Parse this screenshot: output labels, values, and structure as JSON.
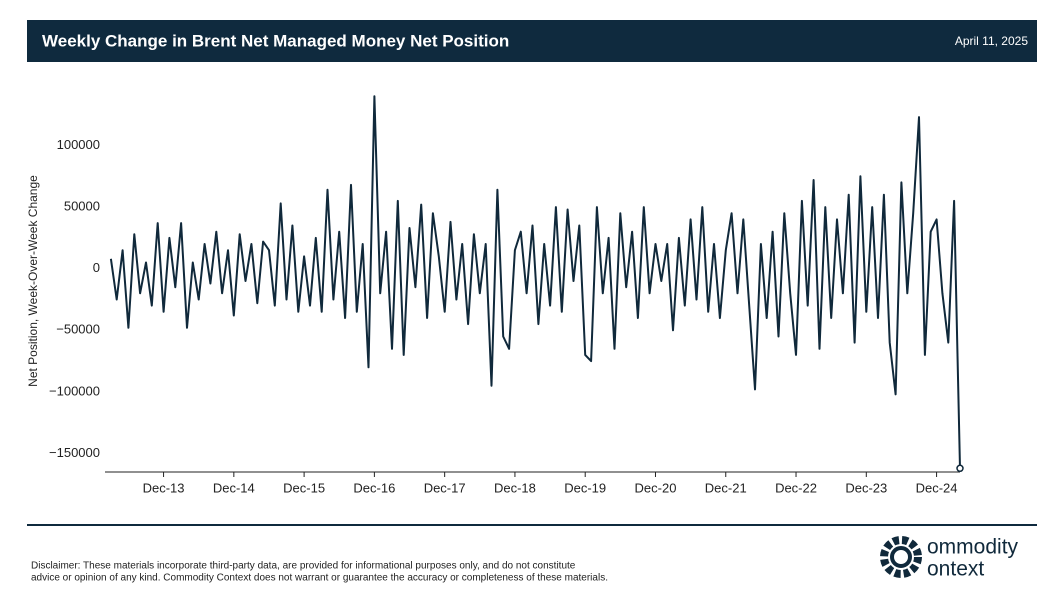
{
  "header": {
    "title": "Weekly Change in Brent Net Managed Money Net Position",
    "date": "April 11, 2025"
  },
  "chart_data": {
    "type": "line",
    "ylabel": "Net Position, Week-Over-Week Change",
    "x": [
      "2013-03",
      "2013-04",
      "2013-05",
      "2013-06",
      "2013-07",
      "2013-08",
      "2013-09",
      "2013-10",
      "2013-11",
      "2013-12",
      "2014-01",
      "2014-02",
      "2014-03",
      "2014-04",
      "2014-05",
      "2014-06",
      "2014-07",
      "2014-08",
      "2014-09",
      "2014-10",
      "2014-11",
      "2014-12",
      "2015-01",
      "2015-02",
      "2015-03",
      "2015-04",
      "2015-05",
      "2015-06",
      "2015-07",
      "2015-08",
      "2015-09",
      "2015-10",
      "2015-11",
      "2015-12",
      "2016-01",
      "2016-02",
      "2016-03",
      "2016-04",
      "2016-05",
      "2016-06",
      "2016-07",
      "2016-08",
      "2016-09",
      "2016-10",
      "2016-11",
      "2016-12",
      "2017-01",
      "2017-02",
      "2017-03",
      "2017-04",
      "2017-05",
      "2017-06",
      "2017-07",
      "2017-08",
      "2017-09",
      "2017-10",
      "2017-11",
      "2017-12",
      "2018-01",
      "2018-02",
      "2018-03",
      "2018-04",
      "2018-05",
      "2018-06",
      "2018-07",
      "2018-08",
      "2018-09",
      "2018-10",
      "2018-11",
      "2018-12",
      "2019-01",
      "2019-02",
      "2019-03",
      "2019-04",
      "2019-05",
      "2019-06",
      "2019-07",
      "2019-08",
      "2019-09",
      "2019-10",
      "2019-11",
      "2019-12",
      "2020-01",
      "2020-02",
      "2020-03",
      "2020-04",
      "2020-05",
      "2020-06",
      "2020-07",
      "2020-08",
      "2020-09",
      "2020-10",
      "2020-11",
      "2020-12",
      "2021-01",
      "2021-02",
      "2021-03",
      "2021-04",
      "2021-05",
      "2021-06",
      "2021-07",
      "2021-08",
      "2021-09",
      "2021-10",
      "2021-11",
      "2021-12",
      "2022-01",
      "2022-02",
      "2022-03",
      "2022-04",
      "2022-05",
      "2022-06",
      "2022-07",
      "2022-08",
      "2022-09",
      "2022-10",
      "2022-11",
      "2022-12",
      "2023-01",
      "2023-02",
      "2023-03",
      "2023-04",
      "2023-05",
      "2023-06",
      "2023-07",
      "2023-08",
      "2023-09",
      "2023-10",
      "2023-11",
      "2023-12",
      "2024-01",
      "2024-02",
      "2024-03",
      "2024-04",
      "2024-05",
      "2024-06",
      "2024-07",
      "2024-08",
      "2024-09",
      "2024-10",
      "2024-11",
      "2024-12",
      "2025-01",
      "2025-02",
      "2025-03",
      "2025-04"
    ],
    "series": [
      {
        "color": "#10293b",
        "values": [
          8000,
          -25000,
          15000,
          -48000,
          28000,
          -20000,
          5000,
          -30000,
          37000,
          -35000,
          25000,
          -15000,
          37000,
          -48000,
          5000,
          -25000,
          20000,
          -12000,
          30000,
          -20000,
          15000,
          -38000,
          28000,
          -10000,
          20000,
          -28000,
          22000,
          15000,
          -30000,
          53000,
          -25000,
          35000,
          -35000,
          10000,
          -30000,
          25000,
          -35000,
          64000,
          -25000,
          30000,
          -40000,
          68000,
          -35000,
          20000,
          -80000,
          140000,
          -20000,
          30000,
          -65000,
          55000,
          -70000,
          33000,
          -15000,
          52000,
          -40000,
          45000,
          10000,
          -35000,
          38000,
          -25000,
          20000,
          -45000,
          28000,
          -20000,
          20000,
          -95000,
          64000,
          -55000,
          -65000,
          15000,
          30000,
          -20000,
          35000,
          -45000,
          20000,
          -30000,
          50000,
          -35000,
          48000,
          -10000,
          35000,
          -70000,
          -75000,
          50000,
          -20000,
          25000,
          -65000,
          45000,
          -15000,
          30000,
          -40000,
          50000,
          -20000,
          20000,
          -10000,
          20000,
          -50000,
          25000,
          -30000,
          40000,
          -25000,
          50000,
          -35000,
          20000,
          -40000,
          15000,
          45000,
          -20000,
          40000,
          -30000,
          -98000,
          20000,
          -40000,
          30000,
          -55000,
          45000,
          -20000,
          -70000,
          55000,
          -30000,
          72000,
          -65000,
          50000,
          -40000,
          40000,
          -20000,
          60000,
          -60000,
          75000,
          -35000,
          50000,
          -40000,
          60000,
          -60000,
          -102000,
          70000,
          -20000,
          45000,
          123000,
          -70000,
          30000,
          40000,
          -20000,
          -60000,
          55000,
          -162000
        ]
      }
    ],
    "xlim": [
      "2013-02",
      "2025-04"
    ],
    "xticks": [
      {
        "value": "2013-12",
        "label": "Dec-13"
      },
      {
        "value": "2014-12",
        "label": "Dec-14"
      },
      {
        "value": "2015-12",
        "label": "Dec-15"
      },
      {
        "value": "2016-12",
        "label": "Dec-16"
      },
      {
        "value": "2017-12",
        "label": "Dec-17"
      },
      {
        "value": "2018-12",
        "label": "Dec-18"
      },
      {
        "value": "2019-12",
        "label": "Dec-19"
      },
      {
        "value": "2020-12",
        "label": "Dec-20"
      },
      {
        "value": "2021-12",
        "label": "Dec-21"
      },
      {
        "value": "2022-12",
        "label": "Dec-22"
      },
      {
        "value": "2023-12",
        "label": "Dec-23"
      },
      {
        "value": "2024-12",
        "label": "Dec-24"
      }
    ],
    "ylim": [
      -165000,
      145000
    ],
    "yticks": [
      {
        "value": -150000,
        "label": "−150000"
      },
      {
        "value": -100000,
        "label": "−100000"
      },
      {
        "value": -50000,
        "label": "−50000"
      },
      0,
      50000,
      100000
    ],
    "last_point_marker": true
  },
  "footer": {
    "disclaimer": [
      "Disclaimer: These materials incorporate third-party data, are provided for informational purposes only, and do not constitute",
      "advice or opinion of any kind. Commodity Context does not warrant or guarantee the accuracy or completeness of these materials."
    ],
    "logo": [
      "ommodity",
      "ontext"
    ]
  }
}
